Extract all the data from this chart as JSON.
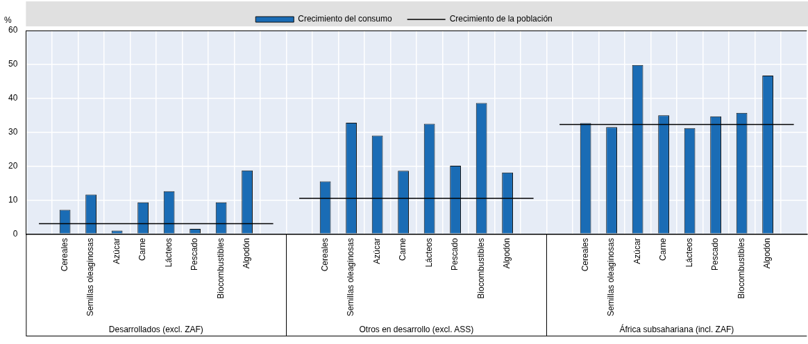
{
  "chart_data": {
    "type": "bar",
    "ylabel": "%",
    "categories": [
      null,
      "Cereales",
      "Semillas oleaginosas",
      "Azúcar",
      "Carne",
      "Lácteos",
      "Pescado",
      "Biocombustibles",
      "Algodón",
      null,
      null,
      "Cereales",
      "Semillas oleaginosas",
      "Azúcar",
      "Carne",
      "Lácteos",
      "Pescado",
      "Biocombustibles",
      "Algodón",
      null,
      null,
      "Cereales",
      "Semillas oleaginosas",
      "Azúcar",
      "Carne",
      "Lácteos",
      "Pescado",
      "Biocombustibles",
      "Algodón",
      null
    ],
    "series": [
      {
        "name": "Crecimiento del consumo",
        "color": "#1a6cb5",
        "values": [
          null,
          7.1,
          11.6,
          1.0,
          9.3,
          12.6,
          1.5,
          9.3,
          18.7,
          null,
          null,
          15.5,
          32.8,
          29.0,
          18.6,
          32.5,
          20.1,
          38.6,
          18.1,
          null,
          null,
          32.7,
          31.5,
          49.8,
          35.0,
          31.2,
          34.7,
          35.7,
          46.7,
          null
        ]
      },
      {
        "name": "Crecimiento de la población",
        "type": "line",
        "color": "#000000",
        "values": [
          3.0,
          3.0,
          3.0,
          3.0,
          3.0,
          3.0,
          3.0,
          3.0,
          3.0,
          3.0,
          10.5,
          10.5,
          10.5,
          10.5,
          10.5,
          10.5,
          10.5,
          10.5,
          10.5,
          10.5,
          32.3,
          32.3,
          32.3,
          32.3,
          32.3,
          32.3,
          32.3,
          32.3,
          32.3,
          32.3
        ]
      }
    ],
    "ylim": [
      0,
      60
    ],
    "yticks": [
      0,
      10,
      20,
      30,
      40,
      50,
      60
    ],
    "grid": true,
    "legend": "top",
    "marker": "none",
    "annotations": [
      "Desarrollados (excl. ZAF)",
      "Otros en desarrollo (excl. ASS)",
      "África subsahariana (incl. ZAF)"
    ]
  }
}
